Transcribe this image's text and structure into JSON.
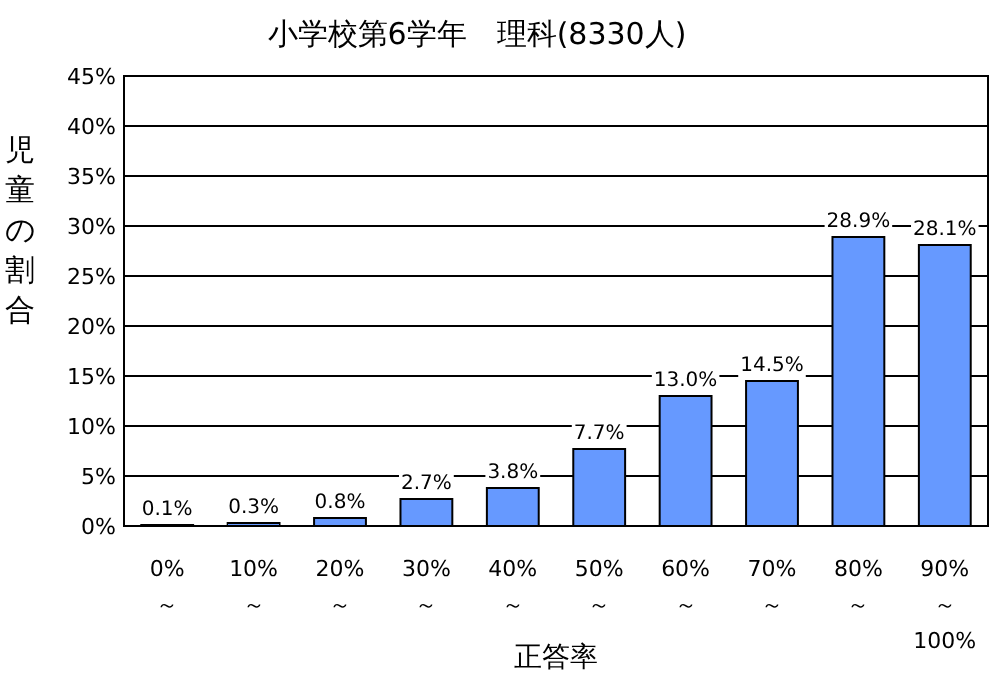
{
  "chart_data": {
    "type": "bar",
    "title": "小学校第6学年　理科(8330人)",
    "xlabel": "正答率",
    "ylabel": "児童の割合",
    "categories": [
      "0%\n～",
      "10%\n～",
      "20%\n～",
      "30%\n～",
      "40%\n～",
      "50%\n～",
      "60%\n～",
      "70%\n～",
      "80%\n～",
      "90%\n～\n100%"
    ],
    "values": [
      0.1,
      0.3,
      0.8,
      2.7,
      3.8,
      7.7,
      13.0,
      14.5,
      28.9,
      28.1
    ],
    "value_labels": [
      "0.1%",
      "0.3%",
      "0.8%",
      "2.7%",
      "3.8%",
      "7.7%",
      "13.0%",
      "14.5%",
      "28.9%",
      "28.1%"
    ],
    "color": "#6699ff",
    "ylim": [
      0,
      45
    ],
    "yticks": [
      {
        "value": 0,
        "label": "0%"
      },
      {
        "value": 5,
        "label": "5%"
      },
      {
        "value": 10,
        "label": "10%"
      },
      {
        "value": 15,
        "label": "15%"
      },
      {
        "value": 20,
        "label": "20%"
      },
      {
        "value": 25,
        "label": "25%"
      },
      {
        "value": 30,
        "label": "30%"
      },
      {
        "value": 35,
        "label": "35%"
      },
      {
        "value": 40,
        "label": "40%"
      },
      {
        "value": 45,
        "label": "45%"
      }
    ],
    "grid": "y"
  }
}
